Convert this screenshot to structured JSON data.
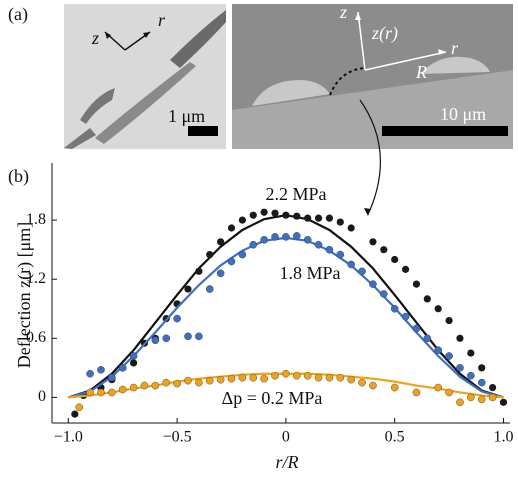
{
  "panel_a": {
    "label": "(a)",
    "left_z": "z",
    "left_r": "r",
    "left_scale": "1 μm",
    "right_z": "z",
    "right_zr": "z(r)",
    "right_r": "r",
    "right_R": "R",
    "right_scale": "10 μm"
  },
  "chart_data": {
    "type": "scatter",
    "panel_label": "(b)",
    "ylabel": "Deflection z(r) [μm]",
    "xlabel": "r/R",
    "xlim": [
      -1.075,
      1.03
    ],
    "ylim": [
      -0.26,
      2.38
    ],
    "xticks": [
      {
        "value": -1,
        "label": "−1.0"
      },
      {
        "value": -0.5,
        "label": "−0.5"
      },
      0,
      0.5,
      {
        "value": 1,
        "label": "1.0"
      }
    ],
    "yticks": [
      0,
      0.6,
      1.2,
      1.8
    ],
    "fit_x": [
      -1,
      -0.9,
      -0.8,
      -0.7,
      -0.6,
      -0.5,
      -0.4,
      -0.3,
      -0.2,
      -0.1,
      0,
      0.1,
      0.2,
      0.3,
      0.4,
      0.5,
      0.6,
      0.7,
      0.8,
      0.9,
      1
    ],
    "series": [
      {
        "name": "2.2 MPa",
        "color": "#1a1a1a",
        "fit_color": "#111111",
        "x": [
          -0.97,
          -0.93,
          -0.85,
          -0.8,
          -0.75,
          -0.7,
          -0.65,
          -0.6,
          -0.55,
          -0.5,
          -0.45,
          -0.4,
          -0.35,
          -0.3,
          -0.25,
          -0.2,
          -0.15,
          -0.1,
          -0.05,
          0,
          0.05,
          0.1,
          0.15,
          0.2,
          0.25,
          0.3,
          0.4,
          0.45,
          0.5,
          0.55,
          0.6,
          0.65,
          0.7,
          0.75,
          0.8,
          0.85,
          0.9,
          0.95,
          1.0
        ],
        "values": [
          -0.17,
          0.02,
          0.1,
          0.18,
          0.3,
          0.35,
          0.55,
          0.6,
          0.8,
          0.95,
          1.1,
          1.28,
          1.45,
          1.58,
          1.72,
          1.8,
          1.85,
          1.88,
          1.87,
          1.85,
          1.84,
          1.82,
          1.82,
          1.82,
          1.78,
          1.72,
          1.58,
          1.5,
          1.4,
          1.3,
          1.15,
          1.0,
          0.9,
          0.78,
          0.6,
          0.45,
          0.3,
          0.1,
          -0.05
        ],
        "fit_values": [
          0,
          0.07,
          0.24,
          0.48,
          0.76,
          1.04,
          1.31,
          1.53,
          1.7,
          1.81,
          1.85,
          1.81,
          1.7,
          1.53,
          1.31,
          1.04,
          0.76,
          0.48,
          0.24,
          0.07,
          0
        ]
      },
      {
        "name": "1.8 MPa",
        "color": "#3f6fc0",
        "fit_color": "#3f6fc0",
        "x": [
          -0.9,
          -0.85,
          -0.8,
          -0.75,
          -0.7,
          -0.6,
          -0.55,
          -0.5,
          -0.45,
          -0.4,
          -0.35,
          -0.3,
          -0.25,
          -0.2,
          -0.15,
          -0.1,
          -0.05,
          0,
          0.05,
          0.1,
          0.15,
          0.2,
          0.25,
          0.3,
          0.35,
          0.4,
          0.45,
          0.5,
          0.55,
          0.6,
          0.65,
          0.7,
          0.75,
          0.8,
          0.85,
          0.9
        ],
        "values": [
          0.24,
          0.28,
          0.2,
          0.3,
          0.42,
          0.58,
          0.6,
          0.8,
          0.62,
          0.62,
          1.1,
          1.26,
          1.38,
          1.45,
          1.55,
          1.6,
          1.63,
          1.63,
          1.64,
          1.6,
          1.55,
          1.5,
          1.45,
          1.35,
          1.28,
          1.15,
          1.05,
          0.9,
          0.82,
          0.7,
          0.6,
          0.48,
          0.42,
          0.3,
          0.22,
          0.15
        ],
        "fit_values": [
          0,
          0.06,
          0.21,
          0.42,
          0.66,
          0.91,
          1.14,
          1.34,
          1.49,
          1.59,
          1.62,
          1.59,
          1.49,
          1.34,
          1.14,
          0.91,
          0.66,
          0.42,
          0.21,
          0.06,
          0
        ]
      },
      {
        "name": "Δp = 0.2 MPa",
        "color": "#eea21c",
        "fit_color": "#eea21c",
        "x": [
          -0.95,
          -0.9,
          -0.85,
          -0.8,
          -0.75,
          -0.7,
          -0.65,
          -0.6,
          -0.55,
          -0.5,
          -0.45,
          -0.4,
          -0.35,
          -0.3,
          -0.25,
          -0.2,
          -0.15,
          -0.1,
          -0.05,
          0,
          0.05,
          0.1,
          0.15,
          0.2,
          0.25,
          0.3,
          0.35,
          0.4,
          0.5,
          0.6,
          0.7,
          0.75,
          0.8,
          0.85,
          0.9,
          0.95
        ],
        "values": [
          -0.1,
          0.05,
          0.05,
          0.05,
          0.08,
          0.1,
          0.12,
          0.12,
          0.15,
          0.14,
          0.17,
          0.15,
          0.17,
          0.18,
          0.19,
          0.2,
          0.2,
          0.19,
          0.22,
          0.24,
          0.22,
          0.22,
          0.2,
          0.2,
          0.2,
          0.18,
          0.15,
          0.12,
          0.1,
          0.05,
          0.1,
          0.05,
          -0.05,
          0.0,
          -0.02,
          0.0
        ],
        "fit_values": [
          0,
          0.02,
          0.05,
          0.09,
          0.12,
          0.16,
          0.19,
          0.21,
          0.23,
          0.24,
          0.24,
          0.24,
          0.23,
          0.21,
          0.19,
          0.16,
          0.12,
          0.09,
          0.05,
          0.02,
          0
        ]
      }
    ]
  }
}
